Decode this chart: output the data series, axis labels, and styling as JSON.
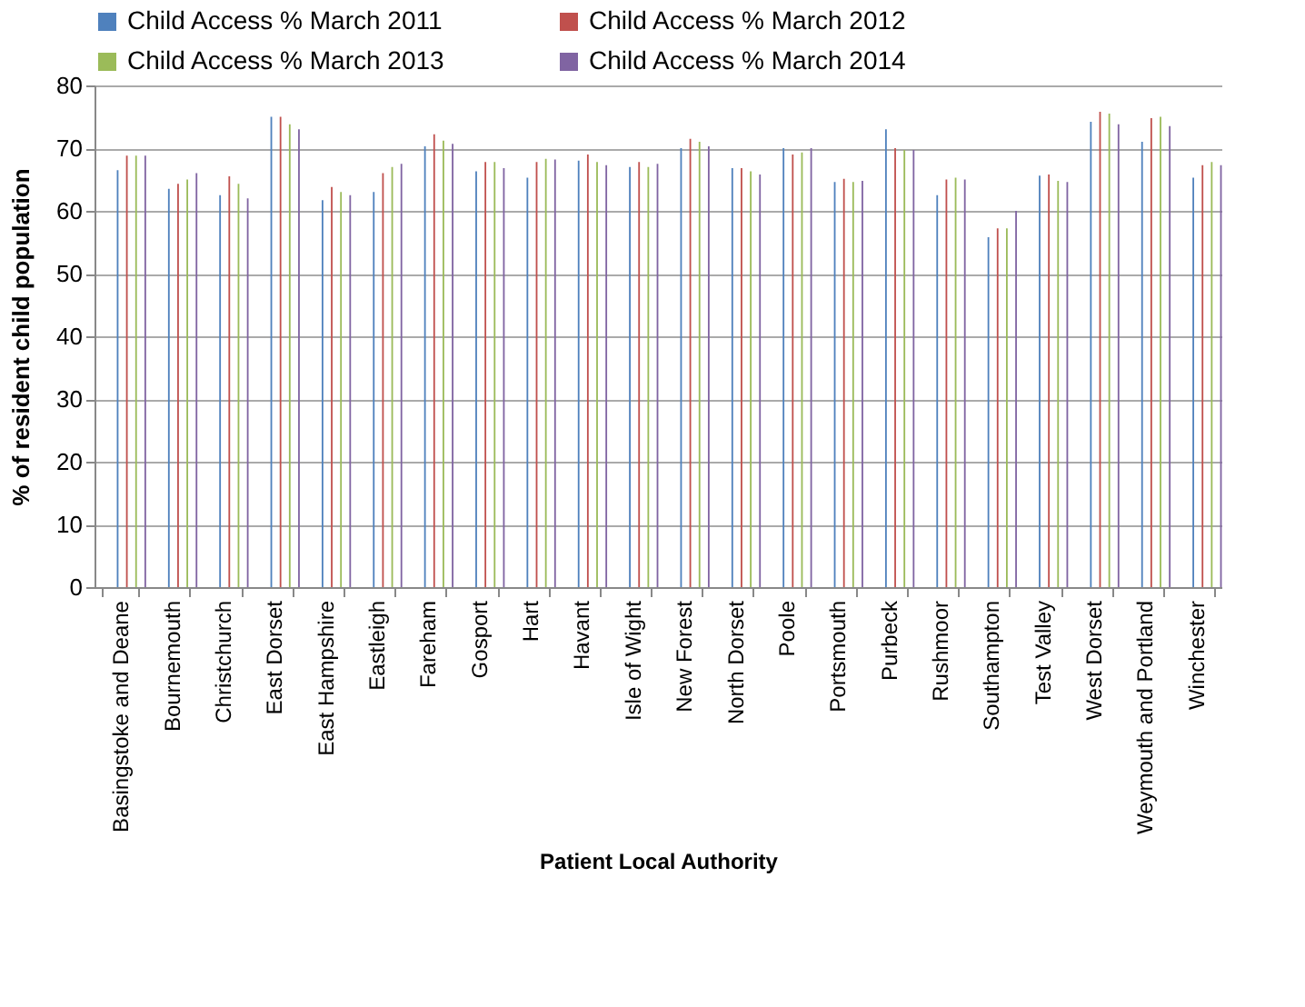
{
  "chart_data": {
    "type": "bar",
    "xlabel": "Patient Local Authority",
    "ylabel": "% of resident child population",
    "categories": [
      "Basingstoke and Deane",
      "Bournemouth",
      "Christchurch",
      "East Dorset",
      "East Hampshire",
      "Eastleigh",
      "Fareham",
      "Gosport",
      "Hart",
      "Havant",
      "Isle of Wight",
      "New Forest",
      "North Dorset",
      "Poole",
      "Portsmouth",
      "Purbeck",
      "Rushmoor",
      "Southampton",
      "Test Valley",
      "West Dorset",
      "Weymouth and Portland",
      "Winchester"
    ],
    "series": [
      {
        "name": "Child Access % March 2011",
        "color": "#4f81bd",
        "values": [
          66.5,
          63.5,
          62.5,
          75,
          61.7,
          63,
          70.3,
          66.3,
          65.3,
          68,
          67,
          70,
          66.8,
          70,
          64.6,
          73,
          62.5,
          55.8,
          65.6,
          74.2,
          71,
          65.3
        ]
      },
      {
        "name": "Child Access % March 2012",
        "color": "#c0504d",
        "values": [
          68.8,
          64.3,
          65.5,
          75,
          63.8,
          66,
          72.2,
          67.8,
          67.8,
          69,
          67.8,
          71.5,
          66.8,
          69,
          65.1,
          70,
          65,
          57.2,
          65.8,
          75.8,
          74.8,
          67.3
        ]
      },
      {
        "name": "Child Access % March 2013",
        "color": "#9bbb59",
        "values": [
          68.8,
          65,
          64.3,
          73.8,
          63,
          67,
          71.2,
          67.8,
          68.3,
          67.8,
          67,
          71,
          66.3,
          69.3,
          64.6,
          69.7,
          65.3,
          57.2,
          64.8,
          75.5,
          75,
          67.8
        ]
      },
      {
        "name": "Child Access % March 2014",
        "color": "#8064a2",
        "values": [
          68.8,
          66,
          62,
          73,
          62.5,
          67.5,
          70.7,
          66.8,
          68.2,
          67.3,
          67.5,
          70.3,
          65.8,
          70,
          64.8,
          69.7,
          65,
          60,
          64.6,
          73.8,
          73.5,
          67.3
        ]
      }
    ],
    "ylim": [
      0,
      80
    ],
    "yticks": [
      0,
      10,
      20,
      30,
      40,
      50,
      60,
      70,
      80
    ],
    "grid": "y",
    "legend": "top"
  }
}
